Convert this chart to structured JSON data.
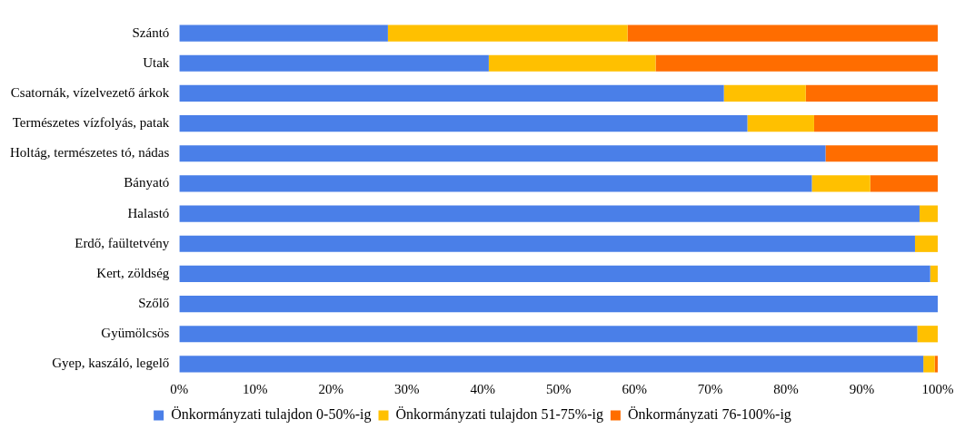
{
  "chart_data": {
    "type": "bar",
    "orientation": "horizontal",
    "stacked": true,
    "categories": [
      "Szántó",
      "Utak",
      "Csatornák, vízelvezető árkok",
      "Természetes vízfolyás, patak",
      "Holtág, természetes tó, nádas",
      "Bányató",
      "Halastó",
      "Erdő, faültetvény",
      "Kert, zöldség",
      "Szőlő",
      "Gyümölcsös",
      "Gyep, kaszáló, legelő"
    ],
    "series": [
      {
        "name": "Önkormányzati tulajdon 0-50%-ig",
        "color": "#4a7fe8",
        "values": [
          27.5,
          40.8,
          71.8,
          74.9,
          85.2,
          83.4,
          97.6,
          97.0,
          99.0,
          100,
          97.3,
          98.1
        ]
      },
      {
        "name": "Önkormányzati tulajdon 51-75%-ig",
        "color": "#ffc000",
        "values": [
          31.6,
          22.0,
          10.8,
          8.8,
          0,
          7.7,
          2.4,
          3.0,
          1.0,
          0,
          2.7,
          1.5
        ]
      },
      {
        "name": "Önkormányzati 76-100%-ig",
        "color": "#ff6d00",
        "values": [
          40.9,
          37.2,
          17.4,
          16.3,
          14.8,
          8.9,
          0,
          0,
          0,
          0,
          0,
          0.4
        ]
      }
    ],
    "xlim": [
      0,
      100
    ],
    "xticks": [
      {
        "value": 0,
        "label": "0%"
      },
      {
        "value": 10,
        "label": "10%"
      },
      {
        "value": 20,
        "label": "20%"
      },
      {
        "value": 30,
        "label": "30%"
      },
      {
        "value": 40,
        "label": "40%"
      },
      {
        "value": 50,
        "label": "50%"
      },
      {
        "value": 60,
        "label": "60%"
      },
      {
        "value": 70,
        "label": "70%"
      },
      {
        "value": 80,
        "label": "80%"
      },
      {
        "value": 90,
        "label": "90%"
      },
      {
        "value": 100,
        "label": "100%"
      }
    ],
    "legend": "bottom"
  }
}
